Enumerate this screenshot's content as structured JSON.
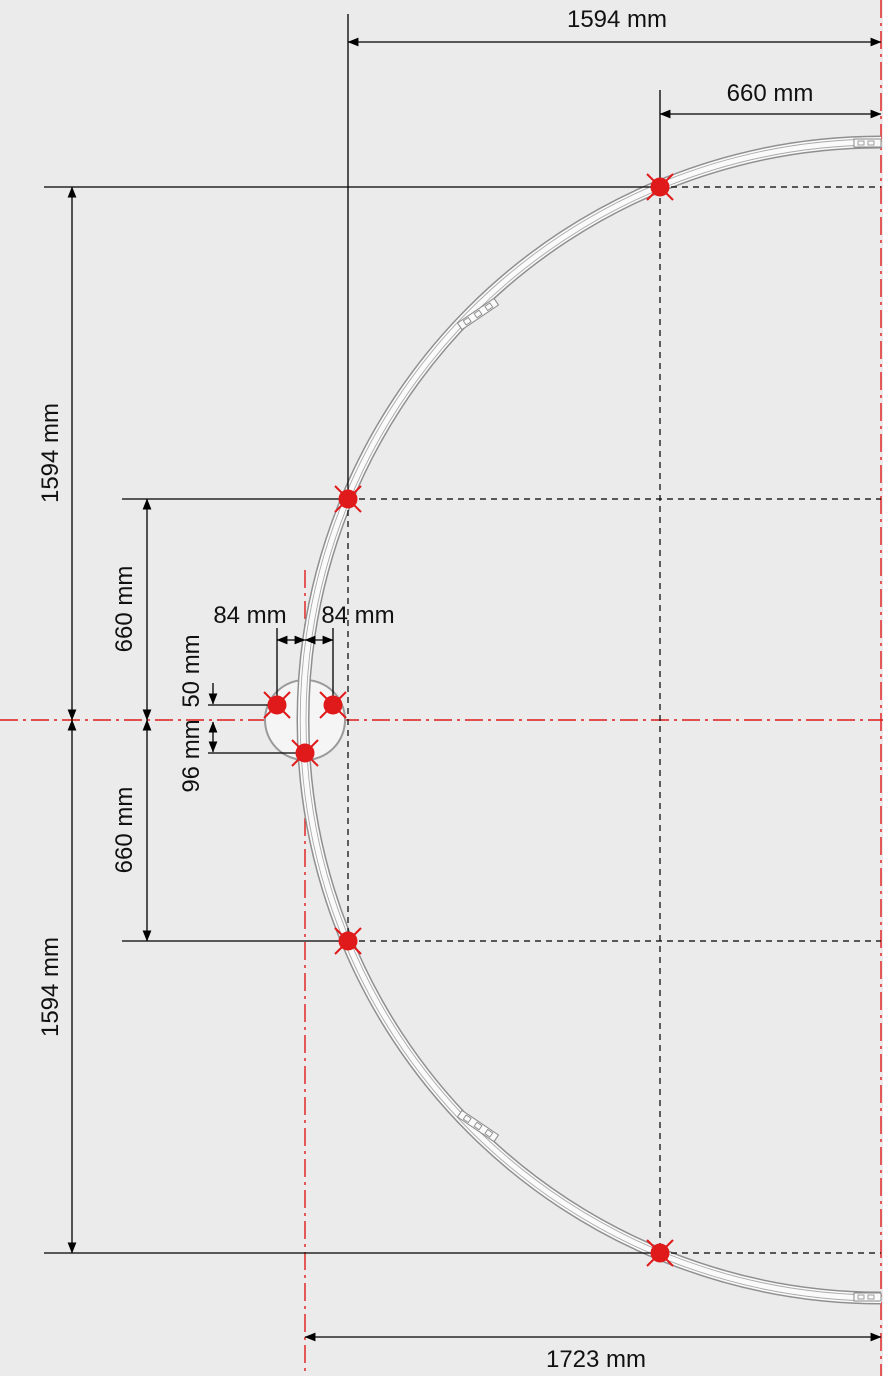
{
  "colors": {
    "background": "#ebebeb",
    "mount_point": "#e01a1a",
    "center_line": "#e01a1a",
    "track": "#8f8f8f",
    "dimension_line": "#000000"
  },
  "dimensions": {
    "top_width": "1594 mm",
    "top_right_offset": "660 mm",
    "left_upper_height": "1594 mm",
    "left_lower_height": "1594 mm",
    "inner_upper_height": "660 mm",
    "inner_lower_height": "660 mm",
    "hub_left_spacing": "84 mm",
    "hub_right_spacing": "84 mm",
    "hub_upper_offset": "50 mm",
    "hub_lower_offset": "96 mm",
    "bottom_width": "1723 mm"
  },
  "mount_points": [
    {
      "name": "mount-point-top",
      "icon": "cross-marker-icon"
    },
    {
      "name": "mount-point-upper",
      "icon": "cross-marker-icon"
    },
    {
      "name": "mount-point-lower",
      "icon": "cross-marker-icon"
    },
    {
      "name": "mount-point-bottom",
      "icon": "cross-marker-icon"
    },
    {
      "name": "mount-point-hub-left",
      "icon": "cross-marker-icon"
    },
    {
      "name": "mount-point-hub-right",
      "icon": "cross-marker-icon"
    },
    {
      "name": "mount-point-hub-bottom",
      "icon": "cross-marker-icon"
    }
  ]
}
